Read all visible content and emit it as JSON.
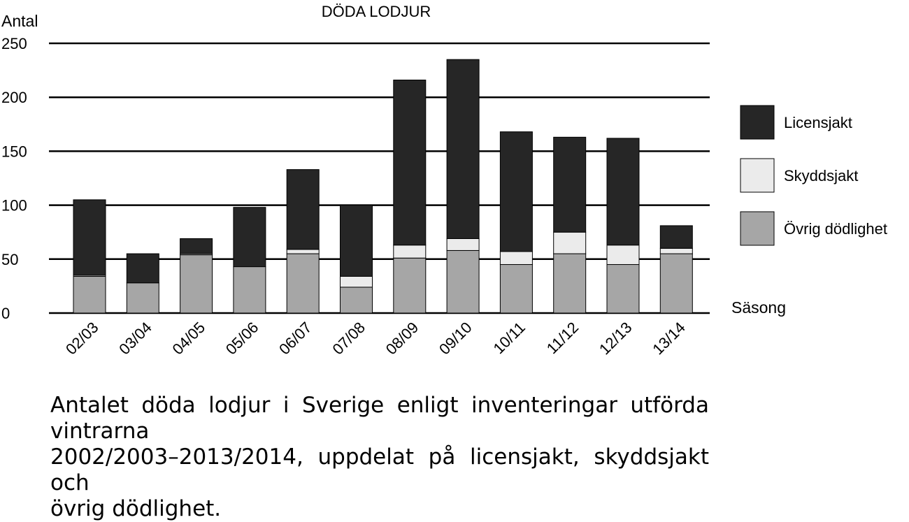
{
  "chart_data": {
    "type": "bar",
    "stacked": true,
    "title": "DÖDA LODJUR",
    "ylabel": "Antal",
    "xlabel": "Säsong",
    "ylim": [
      0,
      250
    ],
    "yticks": [
      0,
      50,
      100,
      150,
      200,
      250
    ],
    "grid": true,
    "legend_position": "right",
    "categories": [
      "02/03",
      "03/04",
      "04/05",
      "05/06",
      "06/07",
      "07/08",
      "08/09",
      "09/10",
      "10/11",
      "11/12",
      "12/13",
      "13/14"
    ],
    "series": [
      {
        "name": "Övrig dödlighet",
        "color": "#a6a6a6",
        "values": [
          34,
          28,
          54,
          43,
          55,
          24,
          51,
          58,
          45,
          55,
          45,
          55
        ]
      },
      {
        "name": "Skyddsjakt",
        "color": "#ebebeb",
        "values": [
          1,
          0,
          1,
          0,
          4,
          10,
          12,
          11,
          12,
          20,
          18,
          5
        ]
      },
      {
        "name": "Licensjakt",
        "color": "#262626",
        "values": [
          70,
          27,
          14,
          55,
          74,
          66,
          153,
          166,
          111,
          88,
          99,
          21
        ]
      }
    ]
  },
  "caption": {
    "line1": "Antalet döda lodjur i Sverige enligt inventeringar utförda vintrarna",
    "line2": "2002/2003–2013/2014, uppdelat på licensjakt, skyddsjakt och",
    "line3": "övrig dödlighet."
  }
}
